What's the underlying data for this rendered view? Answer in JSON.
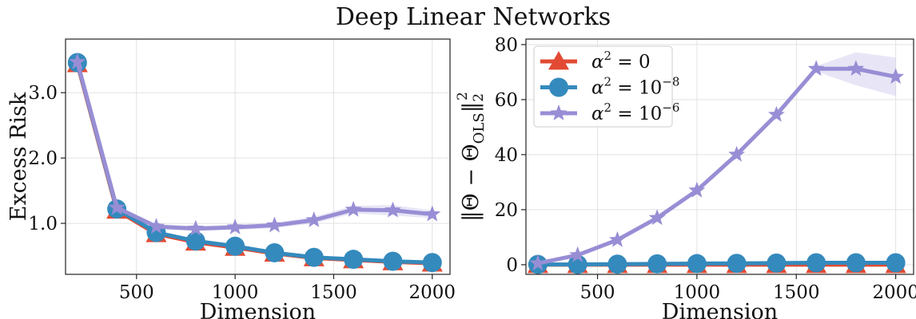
{
  "figure": {
    "title": "Deep Linear Networks"
  },
  "colors": {
    "alpha0": "#e24a33",
    "alpha1e8": "#348abd",
    "alpha1e6": "#988ed5"
  },
  "chart_data": [
    {
      "type": "line",
      "xlabel": "Dimension",
      "ylabel": "Excess Risk",
      "xlim": [
        140,
        2090
      ],
      "ylim": [
        0.22,
        3.82
      ],
      "xticks": [
        500,
        1000,
        1500,
        2000
      ],
      "xtick_labels": [
        "500",
        "1000",
        "1500",
        "2000"
      ],
      "yticks": [
        1.0,
        2.0,
        3.0
      ],
      "ytick_labels": [
        "1.0",
        "2.0",
        "3.0"
      ],
      "grid": true,
      "x": [
        200,
        400,
        600,
        800,
        1000,
        1200,
        1400,
        1600,
        1800,
        2000
      ],
      "series": [
        {
          "key": "a0",
          "marker": "triangle",
          "values": [
            3.44,
            1.2,
            0.84,
            0.71,
            0.63,
            0.54,
            0.47,
            0.44,
            0.41,
            0.39
          ],
          "band": [
            0.01,
            0.02,
            0.02,
            0.02,
            0.02,
            0.02,
            0.02,
            0.02,
            0.02,
            0.02
          ]
        },
        {
          "key": "a8",
          "marker": "circle",
          "values": [
            3.46,
            1.22,
            0.86,
            0.73,
            0.65,
            0.55,
            0.48,
            0.45,
            0.42,
            0.4
          ],
          "band": [
            0.01,
            0.02,
            0.03,
            0.03,
            0.02,
            0.02,
            0.02,
            0.02,
            0.02,
            0.02
          ]
        },
        {
          "key": "a6",
          "marker": "star",
          "values": [
            3.47,
            1.24,
            0.95,
            0.92,
            0.94,
            0.97,
            1.05,
            1.21,
            1.2,
            1.14
          ],
          "band": [
            0.01,
            0.02,
            0.04,
            0.04,
            0.04,
            0.04,
            0.05,
            0.06,
            0.08,
            0.06
          ]
        }
      ]
    },
    {
      "type": "line",
      "xlabel": "Dimension",
      "ylabel": "",
      "xlim": [
        140,
        2090
      ],
      "ylim": [
        -3.5,
        82
      ],
      "xticks": [
        500,
        1000,
        1500,
        2000
      ],
      "xtick_labels": [
        "500",
        "1000",
        "1500",
        "2000"
      ],
      "yticks": [
        0,
        20,
        40,
        60,
        80
      ],
      "ytick_labels": [
        "0",
        "20",
        "40",
        "60",
        "80"
      ],
      "grid": true,
      "legend_position": "top-left",
      "x": [
        200,
        400,
        600,
        800,
        1000,
        1200,
        1400,
        1600,
        1800,
        2000
      ],
      "series": [
        {
          "key": "a0",
          "name_base": "α",
          "name_exp": "2",
          "name_rest": " = 0",
          "name_rest_exp": "",
          "marker": "triangle",
          "values": [
            0,
            0,
            0,
            0,
            0,
            0,
            0,
            0,
            0,
            0
          ],
          "band": [
            0,
            0,
            0,
            0,
            0,
            0,
            0,
            0,
            0,
            0
          ]
        },
        {
          "key": "a8",
          "name_base": "α",
          "name_exp": "2",
          "name_rest": " = 10",
          "name_rest_exp": "−8",
          "marker": "circle",
          "values": [
            0.1,
            0.1,
            0.2,
            0.3,
            0.4,
            0.5,
            0.6,
            0.7,
            0.7,
            0.7
          ],
          "band": [
            0,
            0,
            0,
            0,
            0,
            0,
            0,
            0,
            0,
            0
          ]
        },
        {
          "key": "a6",
          "name_base": "α",
          "name_exp": "2",
          "name_rest": " = 10",
          "name_rest_exp": "−6",
          "marker": "star",
          "values": [
            0.5,
            3.5,
            9.0,
            17.0,
            27.0,
            40.0,
            54.5,
            71.2,
            71.2,
            68.3
          ],
          "band": [
            0.1,
            0.2,
            0.3,
            0.4,
            0.5,
            0.6,
            0.8,
            1.0,
            6.0,
            7.0
          ]
        }
      ]
    }
  ]
}
